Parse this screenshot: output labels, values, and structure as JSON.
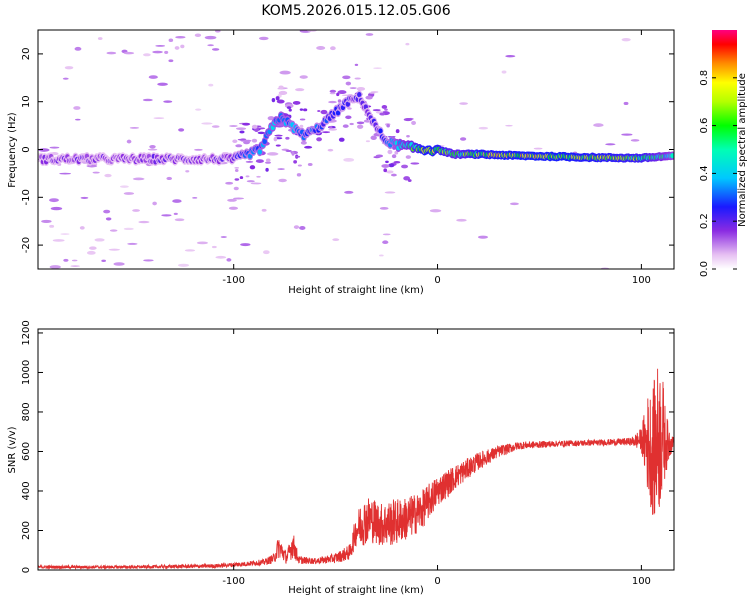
{
  "figure_title": "KOM5.2026.015.12.05.G06",
  "chart_data": [
    {
      "type": "heatmap",
      "name": "spectrogram",
      "xlabel": "Height of straight line (km)",
      "ylabel": "Frequency (Hz)",
      "xlim": [
        -196,
        116
      ],
      "ylim": [
        -25,
        25
      ],
      "xticks": [
        -100,
        0,
        100
      ],
      "xtick_labels": [
        "-100",
        "0",
        "100"
      ],
      "yticks": [
        20,
        10,
        0,
        -10,
        -20
      ],
      "ytick_labels": [
        "20",
        "10",
        "0",
        "-10",
        "-20"
      ],
      "ridge": {
        "x": [
          -196,
          -175,
          -155,
          -135,
          -115,
          -100,
          -93,
          -87,
          -82,
          -77,
          -72,
          -66,
          -60,
          -52,
          -44,
          -38,
          -32,
          -26,
          -20,
          -14,
          -6,
          0,
          8,
          20,
          40,
          60,
          80,
          100,
          116
        ],
        "freq": [
          -2,
          -2,
          -2,
          -2,
          -2,
          -2,
          -1,
          0,
          4,
          7,
          5,
          3,
          4,
          7,
          10,
          11,
          6,
          2,
          1,
          0.5,
          0,
          0,
          -1,
          -1,
          -1.3,
          -1.5,
          -1.7,
          -1.8,
          -1.3
        ],
        "amplitude": [
          0.15,
          0.18,
          0.15,
          0.18,
          0.15,
          0.2,
          0.3,
          0.35,
          0.4,
          0.38,
          0.35,
          0.3,
          0.3,
          0.25,
          0.22,
          0.2,
          0.2,
          0.25,
          0.4,
          0.5,
          0.75,
          0.7,
          0.55,
          0.7,
          0.75,
          0.75,
          0.7,
          0.65,
          0.4
        ]
      },
      "colorbar": {
        "label": "Normalized spectral amplitude",
        "range": [
          0,
          1
        ],
        "ticks": [
          0.0,
          0.2,
          0.4,
          0.6,
          0.8
        ],
        "tick_labels": [
          "0.0",
          "0.2",
          "0.4",
          "0.6",
          "0.8"
        ]
      }
    },
    {
      "type": "line",
      "name": "snr",
      "xlabel": "Height of straight line (km)",
      "ylabel": "SNR (v/v)",
      "xlim": [
        -196,
        116
      ],
      "ylim": [
        0,
        1220
      ],
      "xticks": [
        -100,
        0,
        100
      ],
      "xtick_labels": [
        "-100",
        "0",
        "100"
      ],
      "yticks": [
        0,
        200,
        400,
        600,
        800,
        1000,
        1200
      ],
      "ytick_labels": [
        "0",
        "200",
        "400",
        "600",
        "800",
        "1000",
        "1200"
      ],
      "color": "#e03030",
      "envelope": {
        "x": [
          -196,
          -150,
          -110,
          -95,
          -85,
          -80,
          -78,
          -74,
          -71,
          -68,
          -60,
          -50,
          -43,
          -40,
          -37,
          -33,
          -28,
          -22,
          -15,
          -8,
          0,
          10,
          20,
          30,
          40,
          60,
          80,
          95,
          100,
          103,
          106,
          108,
          110,
          112,
          116
        ],
        "mean": [
          15,
          15,
          20,
          30,
          40,
          60,
          120,
          60,
          130,
          50,
          45,
          60,
          90,
          200,
          240,
          260,
          230,
          240,
          260,
          300,
          400,
          480,
          550,
          600,
          630,
          640,
          645,
          650,
          660,
          640,
          600,
          650,
          700,
          640,
          650
        ],
        "noise": [
          8,
          8,
          10,
          12,
          15,
          25,
          60,
          30,
          70,
          20,
          15,
          25,
          40,
          80,
          120,
          120,
          110,
          120,
          110,
          100,
          80,
          60,
          45,
          30,
          20,
          15,
          15,
          20,
          60,
          250,
          350,
          400,
          350,
          150,
          10
        ]
      }
    }
  ]
}
